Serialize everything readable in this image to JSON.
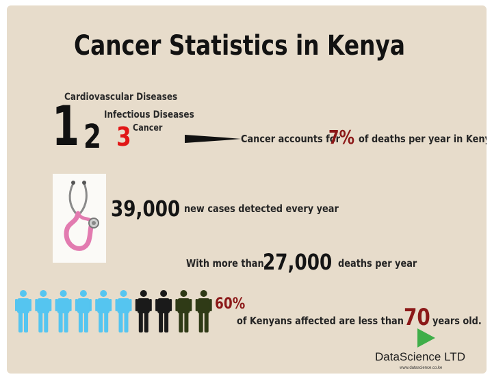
{
  "title": "Cancer Statistics in Kenya",
  "ranking": {
    "rank1": "1",
    "rank2": "2",
    "rank3": "3",
    "label1": "Cardiovascular Diseases",
    "label2": "Infectious Diseases",
    "label3": "Cancer"
  },
  "deaths_share": {
    "prefix": "Cancer accounts for",
    "value": "7%",
    "suffix": "of deaths per year in Kenya"
  },
  "new_cases": {
    "value": "39,000",
    "text": "new cases detected every year"
  },
  "deaths": {
    "prefix": "With more than",
    "value": "27,000",
    "suffix": "deaths per year"
  },
  "age": {
    "percent": "60%",
    "prefix": "of Kenyans affected are less than",
    "value": "70",
    "suffix": "years old.",
    "people_icons": {
      "total": 10,
      "highlighted": 6,
      "highlight_color": "#55c5f0",
      "dark_colors": [
        "#1a1a1a",
        "#1a1a1a",
        "#2f3a16",
        "#2f3a16"
      ]
    }
  },
  "brand": {
    "name": "DataScience LTD",
    "url": "www.datascience.co.ke"
  },
  "colors": {
    "background": "#e7dccb",
    "accent_red": "#8b1818",
    "rank3_red": "#e11616",
    "play_green": "#3fae49"
  }
}
